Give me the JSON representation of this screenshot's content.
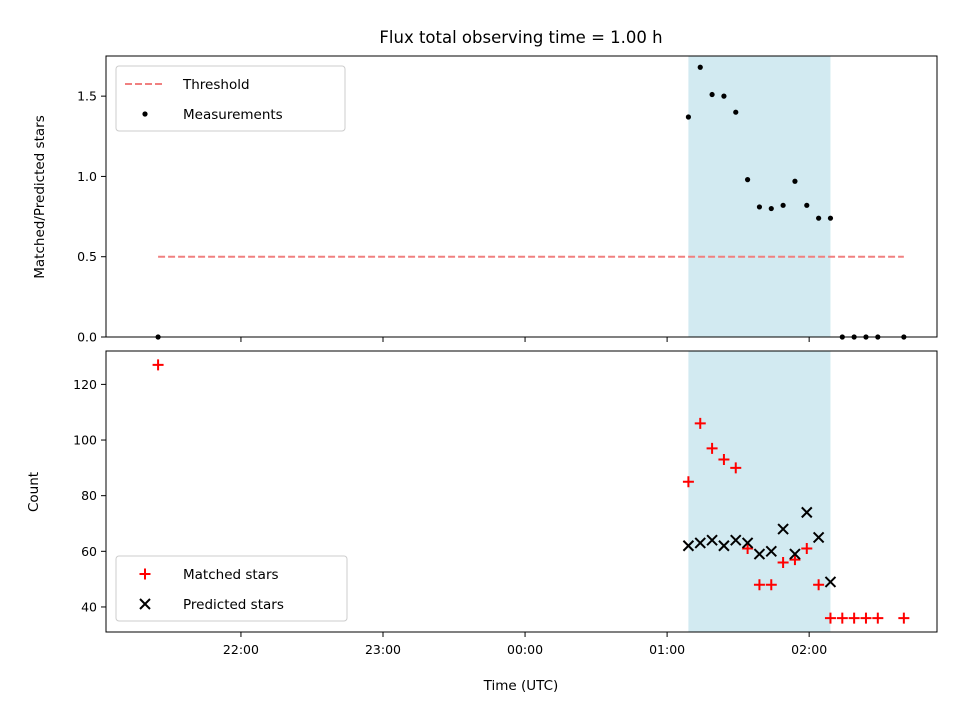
{
  "chart_data": [
    {
      "type": "scatter",
      "title": "Flux total observing time = 1.00 h",
      "xlabel": "",
      "ylabel": "Matched/Predicted stars",
      "yticks": [
        "0.0",
        "0.5",
        "1.0",
        "1.5"
      ],
      "ylim": [
        0,
        1.75
      ],
      "x_range_hours": [
        21.05,
        26.9
      ],
      "highlight_span": [
        "01:09",
        "02:09"
      ],
      "highlight_color": "#add8e6",
      "legend_position": "top-left",
      "series": [
        {
          "name": "Threshold",
          "style": "dashed-line",
          "color": "#f08080",
          "x": [
            "21:25",
            "02:40"
          ],
          "y": [
            0.5,
            0.5
          ]
        },
        {
          "name": "Measurements",
          "style": "dot",
          "color": "#000000",
          "x": [
            "21:25",
            "01:09",
            "01:14",
            "01:19",
            "01:24",
            "01:29",
            "01:34",
            "01:39",
            "01:44",
            "01:49",
            "01:54",
            "01:59",
            "02:04",
            "02:09",
            "02:14",
            "02:19",
            "02:24",
            "02:29",
            "02:40"
          ],
          "y": [
            0.0,
            1.37,
            1.68,
            1.51,
            1.5,
            1.4,
            0.98,
            0.81,
            0.8,
            0.82,
            0.97,
            0.82,
            0.74,
            0.74,
            0.0,
            0.0,
            0.0,
            0.0,
            0.0
          ]
        }
      ]
    },
    {
      "type": "scatter",
      "title": "",
      "xlabel": "Time (UTC)",
      "ylabel": "Count",
      "yticks": [
        "40",
        "60",
        "80",
        "100",
        "120"
      ],
      "ylim": [
        31,
        132
      ],
      "xticks": [
        "22:00",
        "23:00",
        "00:00",
        "01:00",
        "02:00"
      ],
      "x_range_hours": [
        21.05,
        26.9
      ],
      "highlight_span": [
        "01:09",
        "02:09"
      ],
      "highlight_color": "#add8e6",
      "legend_position": "bottom-left",
      "series": [
        {
          "name": "Matched stars",
          "style": "plus",
          "color": "#ff0000",
          "x": [
            "21:25",
            "01:09",
            "01:14",
            "01:19",
            "01:24",
            "01:29",
            "01:34",
            "01:39",
            "01:44",
            "01:49",
            "01:54",
            "01:59",
            "02:04",
            "02:09",
            "02:14",
            "02:19",
            "02:24",
            "02:29",
            "02:40"
          ],
          "y": [
            127,
            85,
            106,
            97,
            93,
            90,
            61,
            48,
            48,
            56,
            57,
            61,
            48,
            36,
            36,
            36,
            36,
            36,
            36
          ]
        },
        {
          "name": "Predicted stars",
          "style": "x",
          "color": "#000000",
          "x": [
            "01:09",
            "01:14",
            "01:19",
            "01:24",
            "01:29",
            "01:34",
            "01:39",
            "01:44",
            "01:49",
            "01:54",
            "01:59",
            "02:04",
            "02:09"
          ],
          "y": [
            62,
            63,
            64,
            62,
            64,
            63,
            59,
            60,
            68,
            59,
            74,
            65,
            49
          ]
        }
      ]
    }
  ]
}
